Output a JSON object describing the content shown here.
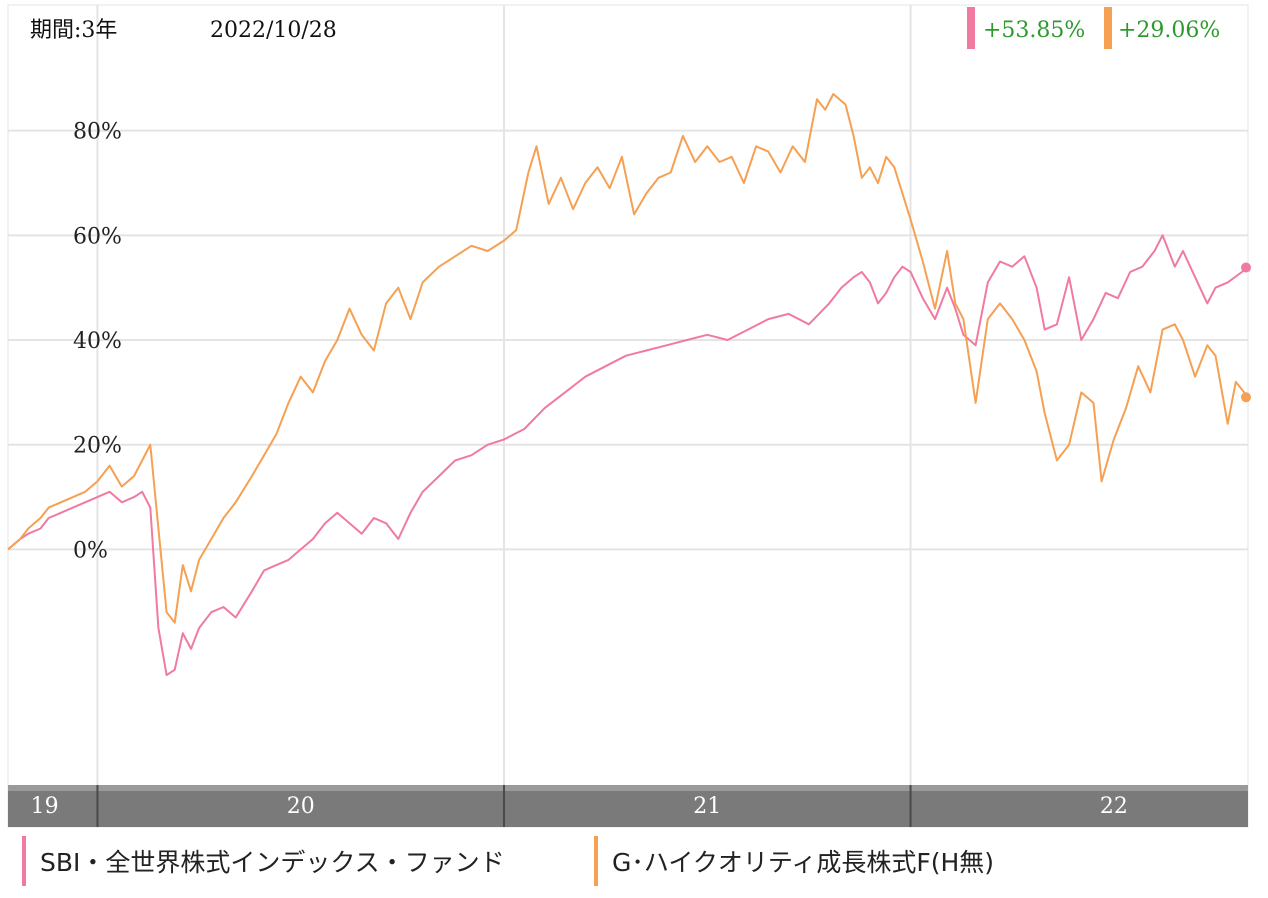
{
  "header": {
    "period_label": "期間:3年",
    "date": "2022/10/28"
  },
  "returns": [
    {
      "value": "+53.85%",
      "color": "#f07aa0"
    },
    {
      "value": "+29.06%",
      "color": "#f5a053"
    }
  ],
  "legend": [
    {
      "label": "SBI・全世界株式インデックス・ファンド",
      "color": "#f07aa0"
    },
    {
      "label": "G･ハイクオリティ成長株式F(H無)",
      "color": "#f5a053"
    }
  ],
  "colors": {
    "series_1": "#f07aa0",
    "series_2": "#f5a053",
    "return_text": "#2e9a2e",
    "axis_band": "#7a7a7a",
    "grid": "#e4e4e4"
  },
  "chart_data": {
    "type": "line",
    "x_axis": {
      "unit": "year",
      "range": [
        2019.78,
        2022.83
      ],
      "tick_labels": [
        "19",
        "20",
        "21",
        "22"
      ],
      "tick_positions": [
        2019.87,
        2020.5,
        2021.5,
        2022.5
      ],
      "boundaries": [
        2020.0,
        2021.0,
        2022.0
      ]
    },
    "y_axis": {
      "unit": "%",
      "range": [
        -45,
        104
      ],
      "ticks": [
        0,
        20,
        40,
        60,
        80
      ],
      "tick_labels": [
        "0%",
        "20%",
        "40%",
        "60%",
        "80%"
      ]
    },
    "grid": true,
    "series": [
      {
        "name": "SBI・全世界株式インデックス・ファンド",
        "color": "#f07aa0",
        "final_value": 53.85,
        "points": [
          [
            2019.78,
            0
          ],
          [
            2019.81,
            2
          ],
          [
            2019.83,
            3
          ],
          [
            2019.86,
            4
          ],
          [
            2019.88,
            6
          ],
          [
            2019.91,
            7
          ],
          [
            2019.94,
            8
          ],
          [
            2019.97,
            9
          ],
          [
            2020.0,
            10
          ],
          [
            2020.03,
            11
          ],
          [
            2020.06,
            9
          ],
          [
            2020.09,
            10
          ],
          [
            2020.11,
            11
          ],
          [
            2020.13,
            8
          ],
          [
            2020.15,
            -15
          ],
          [
            2020.17,
            -24
          ],
          [
            2020.19,
            -23
          ],
          [
            2020.21,
            -16
          ],
          [
            2020.23,
            -19
          ],
          [
            2020.25,
            -15
          ],
          [
            2020.28,
            -12
          ],
          [
            2020.31,
            -11
          ],
          [
            2020.34,
            -13
          ],
          [
            2020.38,
            -8
          ],
          [
            2020.41,
            -4
          ],
          [
            2020.44,
            -3
          ],
          [
            2020.47,
            -2
          ],
          [
            2020.5,
            0
          ],
          [
            2020.53,
            2
          ],
          [
            2020.56,
            5
          ],
          [
            2020.59,
            7
          ],
          [
            2020.62,
            5
          ],
          [
            2020.65,
            3
          ],
          [
            2020.68,
            6
          ],
          [
            2020.71,
            5
          ],
          [
            2020.74,
            2
          ],
          [
            2020.77,
            7
          ],
          [
            2020.8,
            11
          ],
          [
            2020.84,
            14
          ],
          [
            2020.88,
            17
          ],
          [
            2020.92,
            18
          ],
          [
            2020.96,
            20
          ],
          [
            2021.0,
            21
          ],
          [
            2021.05,
            23
          ],
          [
            2021.1,
            27
          ],
          [
            2021.15,
            30
          ],
          [
            2021.2,
            33
          ],
          [
            2021.25,
            35
          ],
          [
            2021.3,
            37
          ],
          [
            2021.35,
            38
          ],
          [
            2021.4,
            39
          ],
          [
            2021.45,
            40
          ],
          [
            2021.5,
            41
          ],
          [
            2021.55,
            40
          ],
          [
            2021.6,
            42
          ],
          [
            2021.65,
            44
          ],
          [
            2021.7,
            45
          ],
          [
            2021.75,
            43
          ],
          [
            2021.8,
            47
          ],
          [
            2021.83,
            50
          ],
          [
            2021.86,
            52
          ],
          [
            2021.88,
            53
          ],
          [
            2021.9,
            51
          ],
          [
            2021.92,
            47
          ],
          [
            2021.94,
            49
          ],
          [
            2021.96,
            52
          ],
          [
            2021.98,
            54
          ],
          [
            2022.0,
            53
          ],
          [
            2022.03,
            48
          ],
          [
            2022.06,
            44
          ],
          [
            2022.09,
            50
          ],
          [
            2022.11,
            46
          ],
          [
            2022.13,
            41
          ],
          [
            2022.16,
            39
          ],
          [
            2022.19,
            51
          ],
          [
            2022.22,
            55
          ],
          [
            2022.25,
            54
          ],
          [
            2022.28,
            56
          ],
          [
            2022.31,
            50
          ],
          [
            2022.33,
            42
          ],
          [
            2022.36,
            43
          ],
          [
            2022.39,
            52
          ],
          [
            2022.42,
            40
          ],
          [
            2022.45,
            44
          ],
          [
            2022.48,
            49
          ],
          [
            2022.51,
            48
          ],
          [
            2022.54,
            53
          ],
          [
            2022.57,
            54
          ],
          [
            2022.6,
            57
          ],
          [
            2022.62,
            60
          ],
          [
            2022.65,
            54
          ],
          [
            2022.67,
            57
          ],
          [
            2022.7,
            52
          ],
          [
            2022.73,
            47
          ],
          [
            2022.75,
            50
          ],
          [
            2022.78,
            51
          ],
          [
            2022.83,
            53.85
          ]
        ]
      },
      {
        "name": "G･ハイクオリティ成長株式F(H無)",
        "color": "#f5a053",
        "final_value": 29.06,
        "points": [
          [
            2019.78,
            0
          ],
          [
            2019.81,
            2
          ],
          [
            2019.83,
            4
          ],
          [
            2019.86,
            6
          ],
          [
            2019.88,
            8
          ],
          [
            2019.91,
            9
          ],
          [
            2019.94,
            10
          ],
          [
            2019.97,
            11
          ],
          [
            2020.0,
            13
          ],
          [
            2020.03,
            16
          ],
          [
            2020.06,
            12
          ],
          [
            2020.09,
            14
          ],
          [
            2020.11,
            17
          ],
          [
            2020.13,
            20
          ],
          [
            2020.15,
            4
          ],
          [
            2020.17,
            -12
          ],
          [
            2020.19,
            -14
          ],
          [
            2020.21,
            -3
          ],
          [
            2020.23,
            -8
          ],
          [
            2020.25,
            -2
          ],
          [
            2020.28,
            2
          ],
          [
            2020.31,
            6
          ],
          [
            2020.34,
            9
          ],
          [
            2020.38,
            14
          ],
          [
            2020.41,
            18
          ],
          [
            2020.44,
            22
          ],
          [
            2020.47,
            28
          ],
          [
            2020.5,
            33
          ],
          [
            2020.53,
            30
          ],
          [
            2020.56,
            36
          ],
          [
            2020.59,
            40
          ],
          [
            2020.62,
            46
          ],
          [
            2020.65,
            41
          ],
          [
            2020.68,
            38
          ],
          [
            2020.71,
            47
          ],
          [
            2020.74,
            50
          ],
          [
            2020.77,
            44
          ],
          [
            2020.8,
            51
          ],
          [
            2020.84,
            54
          ],
          [
            2020.88,
            56
          ],
          [
            2020.92,
            58
          ],
          [
            2020.96,
            57
          ],
          [
            2021.0,
            59
          ],
          [
            2021.03,
            61
          ],
          [
            2021.06,
            72
          ],
          [
            2021.08,
            77
          ],
          [
            2021.11,
            66
          ],
          [
            2021.14,
            71
          ],
          [
            2021.17,
            65
          ],
          [
            2021.2,
            70
          ],
          [
            2021.23,
            73
          ],
          [
            2021.26,
            69
          ],
          [
            2021.29,
            75
          ],
          [
            2021.32,
            64
          ],
          [
            2021.35,
            68
          ],
          [
            2021.38,
            71
          ],
          [
            2021.41,
            72
          ],
          [
            2021.44,
            79
          ],
          [
            2021.47,
            74
          ],
          [
            2021.5,
            77
          ],
          [
            2021.53,
            74
          ],
          [
            2021.56,
            75
          ],
          [
            2021.59,
            70
          ],
          [
            2021.62,
            77
          ],
          [
            2021.65,
            76
          ],
          [
            2021.68,
            72
          ],
          [
            2021.71,
            77
          ],
          [
            2021.74,
            74
          ],
          [
            2021.77,
            86
          ],
          [
            2021.79,
            84
          ],
          [
            2021.81,
            87
          ],
          [
            2021.84,
            85
          ],
          [
            2021.86,
            79
          ],
          [
            2021.88,
            71
          ],
          [
            2021.9,
            73
          ],
          [
            2021.92,
            70
          ],
          [
            2021.94,
            75
          ],
          [
            2021.96,
            73
          ],
          [
            2022.0,
            63
          ],
          [
            2022.03,
            55
          ],
          [
            2022.06,
            46
          ],
          [
            2022.09,
            57
          ],
          [
            2022.11,
            47
          ],
          [
            2022.13,
            44
          ],
          [
            2022.16,
            28
          ],
          [
            2022.19,
            44
          ],
          [
            2022.22,
            47
          ],
          [
            2022.25,
            44
          ],
          [
            2022.28,
            40
          ],
          [
            2022.31,
            34
          ],
          [
            2022.33,
            26
          ],
          [
            2022.36,
            17
          ],
          [
            2022.39,
            20
          ],
          [
            2022.42,
            30
          ],
          [
            2022.45,
            28
          ],
          [
            2022.47,
            13
          ],
          [
            2022.5,
            21
          ],
          [
            2022.53,
            27
          ],
          [
            2022.56,
            35
          ],
          [
            2022.59,
            30
          ],
          [
            2022.62,
            42
          ],
          [
            2022.65,
            43
          ],
          [
            2022.67,
            40
          ],
          [
            2022.7,
            33
          ],
          [
            2022.73,
            39
          ],
          [
            2022.75,
            37
          ],
          [
            2022.78,
            24
          ],
          [
            2022.8,
            32
          ],
          [
            2022.83,
            29.06
          ]
        ]
      }
    ]
  }
}
